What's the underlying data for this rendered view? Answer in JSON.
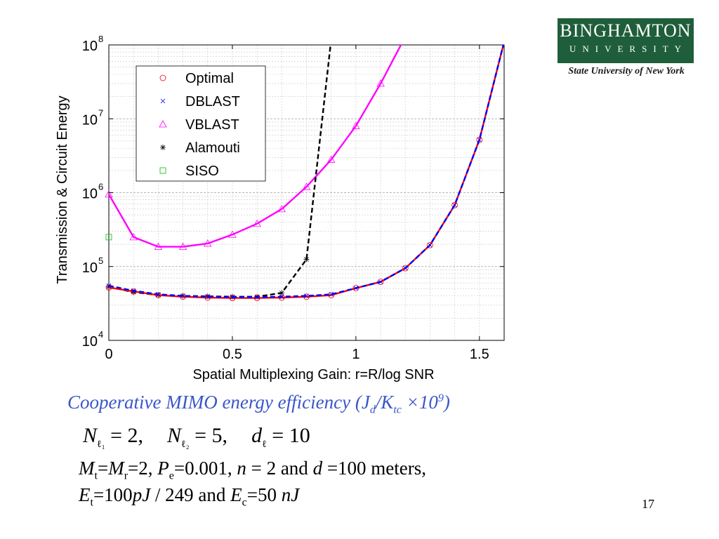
{
  "chart_data": {
    "type": "line",
    "xlabel": "Spatial Multiplexing Gain: r=R/log SNR",
    "ylabel": "Transmission & Circuit Energy",
    "xlim": [
      0,
      1.6
    ],
    "ylim": [
      10000,
      100000000
    ],
    "yscale": "log",
    "x_ticks": [
      "0",
      "0.5",
      "1",
      "1.5"
    ],
    "y_ticks": [
      {
        "base": "10",
        "exp": "4"
      },
      {
        "base": "10",
        "exp": "5"
      },
      {
        "base": "10",
        "exp": "6"
      },
      {
        "base": "10",
        "exp": "7"
      },
      {
        "base": "10",
        "exp": "8"
      }
    ],
    "grid": true,
    "legend_position": "top-left",
    "series": [
      {
        "name": "Optimal",
        "color": "#ff0000",
        "marker": "circle",
        "dash": "solid",
        "x": [
          0,
          0.1,
          0.2,
          0.3,
          0.4,
          0.5,
          0.6,
          0.7,
          0.8,
          0.9,
          1.0,
          1.1,
          1.2,
          1.3,
          1.4,
          1.5,
          1.6
        ],
        "y": [
          52000,
          46000,
          41000,
          39000,
          38000,
          37500,
          37500,
          38000,
          39000,
          41000,
          51000,
          62000,
          95000,
          195000,
          680000,
          5200000,
          110000000
        ]
      },
      {
        "name": "DBLAST",
        "color": "#0000ff",
        "marker": "x",
        "dash": "dashed",
        "x": [
          0,
          0.1,
          0.2,
          0.3,
          0.4,
          0.5,
          0.6,
          0.7,
          0.8,
          0.9,
          1.0,
          1.1,
          1.2,
          1.3,
          1.4,
          1.5,
          1.6
        ],
        "y": [
          55000,
          47000,
          42000,
          40000,
          39000,
          38500,
          38500,
          39000,
          40000,
          42000,
          51000,
          62000,
          95000,
          195000,
          680000,
          5200000,
          110000000
        ]
      },
      {
        "name": "VBLAST",
        "color": "#ff00ff",
        "marker": "triangle",
        "dash": "solid",
        "x": [
          0,
          0.1,
          0.2,
          0.3,
          0.4,
          0.5,
          0.6,
          0.7,
          0.8,
          0.9,
          1.0,
          1.1,
          1.2
        ],
        "y": [
          950000,
          250000,
          185000,
          185000,
          205000,
          270000,
          380000,
          600000,
          1200000,
          2800000,
          8000000,
          30000000,
          130000000
        ]
      },
      {
        "name": "Alamouti",
        "color": "#000000",
        "marker": "star",
        "dash": "dashed",
        "x": [
          0,
          0.1,
          0.2,
          0.3,
          0.4,
          0.5,
          0.6,
          0.7,
          0.8,
          0.9
        ],
        "y": [
          53000,
          45000,
          41000,
          40000,
          39500,
          39000,
          39000,
          44000,
          125000,
          120000000
        ]
      },
      {
        "name": "SISO",
        "color": "#00c000",
        "marker": "square",
        "dash": "none",
        "x": [
          0
        ],
        "y": [
          250000
        ]
      }
    ]
  },
  "caption": {
    "main": "Cooperative MIMO energy efficiency (J",
    "sub1": "d",
    "mid": "/K",
    "sub2": "tc",
    "times": " ×10",
    "sup": "9",
    "end": ")"
  },
  "equation": {
    "n1": "N",
    "n1_sub": "ℓ₁",
    "n1_val": " = 2,",
    "n2": "N",
    "n2_sub": "ℓ₂",
    "n2_val": " = 5,",
    "d": "d",
    "d_sub": "ℓ",
    "d_val": " = 10"
  },
  "params": {
    "line1": {
      "m": "M",
      "t": "t",
      "eq1": "=",
      "m2": "M",
      "r": "r",
      "eq2": "=2, ",
      "p": "P",
      "e": "e",
      "rest": "=0.001, ",
      "n": "n",
      "mid": " = 2 and ",
      "d": "d",
      "end": " =100 meters,"
    },
    "line2": {
      "e": "E",
      "t": "t",
      "eq": "=100",
      "pj": "pJ",
      "mid": " / 249 and ",
      "e2": "E",
      "c": "c",
      "eq2": "=50 ",
      "nj": "nJ"
    }
  },
  "logo": {
    "top": "BINGHAMTON",
    "bottom": "UNIVERSITY",
    "tagline": "State University of New York"
  },
  "page_number": "17"
}
